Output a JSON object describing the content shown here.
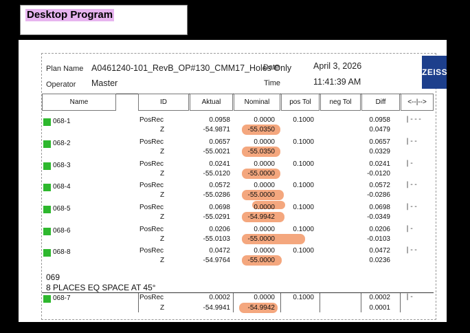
{
  "window": {
    "title": "Desktop Program"
  },
  "report": {
    "plan_label": "Plan Name",
    "plan_value": "A0461240-101_RevB_OP#130_CMM17_Holes Only",
    "date_label": "Date",
    "date_value": "April 3, 2026",
    "operator_label": "Operator",
    "operator_value": "Master",
    "time_label": "Time",
    "time_value": "11:41:39 AM",
    "logo_text": "ZEISS"
  },
  "columns": [
    "Name",
    "ID",
    "Aktual",
    "Nominal",
    "pos Tol",
    "neg Tol",
    "Diff",
    "<--|-->"
  ],
  "rows": [
    {
      "name": "068-1",
      "id1": "PosRec",
      "id2": "Z",
      "act1": "0.0958",
      "act2": "-54.9871",
      "nom1": "0.0000",
      "nom2": "-55.0350",
      "pos": "0.1000",
      "diff1": "0.0958",
      "diff2": "0.0479",
      "bar": "|---"
    },
    {
      "name": "068-2",
      "id1": "PosRec",
      "id2": "Z",
      "act1": "0.0657",
      "act2": "-55.0021",
      "nom1": "0.0000",
      "nom2": "-55.0350",
      "pos": "0.1000",
      "diff1": "0.0657",
      "diff2": "0.0329",
      "bar": "|--"
    },
    {
      "name": "068-3",
      "id1": "PosRec",
      "id2": "Z",
      "act1": "0.0241",
      "act2": "-55.0120",
      "nom1": "0.0000",
      "nom2": "-55.0000",
      "pos": "0.1000",
      "diff1": "0.0241",
      "diff2": "-0.0120",
      "bar": "|-"
    },
    {
      "name": "068-4",
      "id1": "PosRec",
      "id2": "Z",
      "act1": "0.0572",
      "act2": "-55.0286",
      "nom1": "0.0000",
      "nom2": "-55.0000",
      "pos": "0.1000",
      "diff1": "0.0572",
      "diff2": "-0.0286",
      "bar": "|--"
    },
    {
      "name": "068-5",
      "id1": "PosRec",
      "id2": "Z",
      "act1": "0.0698",
      "act2": "-55.0291",
      "nom1": "0.0000",
      "nom2": "-54.9942",
      "pos": "0.1000",
      "diff1": "0.0698",
      "diff2": "-0.0349",
      "bar": "|--"
    },
    {
      "name": "068-6",
      "id1": "PosRec",
      "id2": "Z",
      "act1": "0.0206",
      "act2": "-55.0103",
      "nom1": "0.0000",
      "nom2": "-55.0000",
      "pos": "0.1000",
      "diff1": "0.0206",
      "diff2": "-0.0103",
      "bar": "|-"
    },
    {
      "name": "068-8",
      "id1": "PosRec",
      "id2": "Z",
      "act1": "0.0472",
      "act2": "-54.9764",
      "nom1": "0.0000",
      "nom2": "-55.0000",
      "pos": "0.1000",
      "diff1": "0.0472",
      "diff2": "0.0236",
      "bar": "|--"
    }
  ],
  "section": {
    "number": "069",
    "caption": "8 PLACES EQ SPACE AT 45°"
  },
  "last_row": {
    "name": "068-7",
    "id1": "PosRec",
    "id2": "Z",
    "act1": "0.0002",
    "act2": "-54.9941",
    "nom1": "0.0000",
    "nom2": "-54.9942",
    "pos": "0.1000",
    "diff1": "0.0002",
    "diff2": "0.0001",
    "bar": "|-"
  },
  "colors": {
    "highlight": "#f4a77e",
    "pass_square": "#2eb82e",
    "title_highlight": "#e7b4ef",
    "logo_bg": "#1d3f8c"
  }
}
